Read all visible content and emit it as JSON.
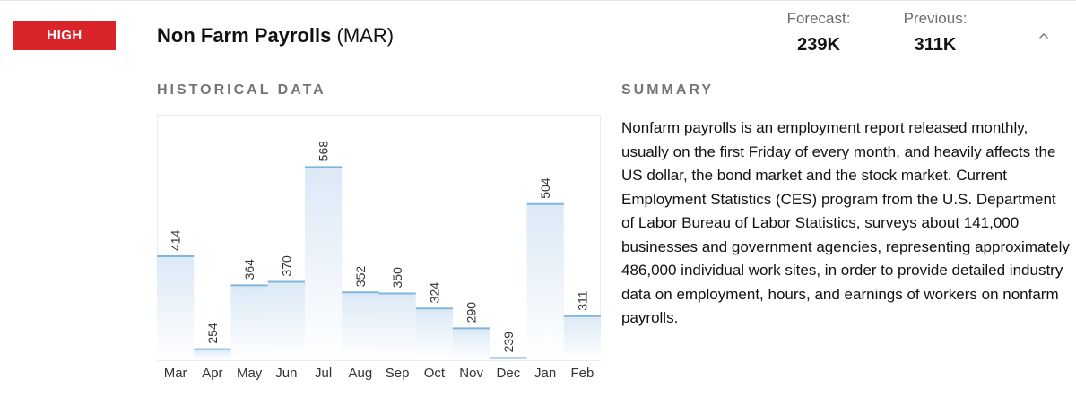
{
  "event": {
    "impact_label": "HIGH",
    "impact_color": "#d9252a",
    "name": "Non Farm Payrolls",
    "period": "(MAR)",
    "forecast_label": "Forecast:",
    "forecast_value": "239K",
    "previous_label": "Previous:",
    "previous_value": "311K",
    "toggle_icon": "chevron-up-icon"
  },
  "sections": {
    "historical_heading": "HISTORICAL DATA",
    "summary_heading": "SUMMARY"
  },
  "summary_text": "Nonfarm payrolls is an employment report released monthly, usually on the first Friday of every month, and heavily affects the US dollar, the bond market and the stock market. Current Employment Statistics (CES) program from the U.S. Department of Labor Bureau of Labor Statistics, surveys about 141,000 businesses and government agencies, representing approximately 486,000 individual work sites, in order to provide detailed industry data on employment, hours, and earnings of workers on nonfarm payrolls.",
  "chart_data": {
    "type": "bar",
    "categories": [
      "Mar",
      "Apr",
      "May",
      "Jun",
      "Jul",
      "Aug",
      "Sep",
      "Oct",
      "Nov",
      "Dec",
      "Jan",
      "Feb"
    ],
    "values": [
      414,
      254,
      364,
      370,
      568,
      352,
      350,
      324,
      290,
      239,
      504,
      311
    ],
    "data_labels_rotated": true,
    "grid": false,
    "bar_fill": "gradient light blue",
    "bar_top_color": "#7fb6dd"
  }
}
